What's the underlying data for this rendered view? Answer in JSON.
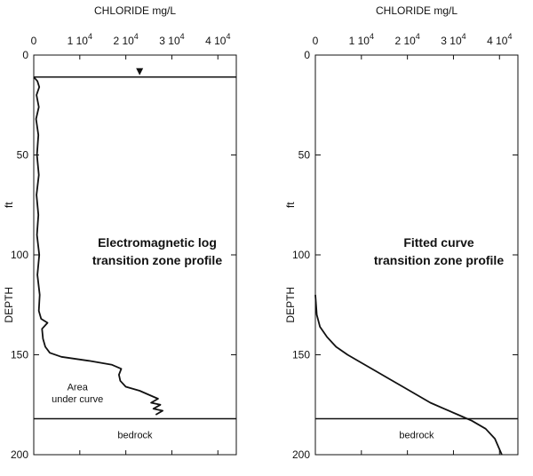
{
  "chart_data": [
    {
      "type": "line",
      "panel": "left",
      "xlabel": "CHLORIDE  mg/L",
      "ylabel": "DEPTH",
      "yunit": "ft",
      "xlim": [
        0,
        44000
      ],
      "ylim": [
        0,
        200
      ],
      "y_inverted": true,
      "x_ticks": [
        {
          "value": 0,
          "base": "0",
          "exp": ""
        },
        {
          "value": 10000,
          "base": "1 10",
          "exp": "4"
        },
        {
          "value": 20000,
          "base": "2 10",
          "exp": "4"
        },
        {
          "value": 30000,
          "base": "3 10",
          "exp": "4"
        },
        {
          "value": 40000,
          "base": "4 10",
          "exp": "4"
        }
      ],
      "y_ticks": [
        0,
        50,
        100,
        150,
        200
      ],
      "water_table_depth": 11,
      "water_table_marker_x": 23000,
      "bedrock_depth": 182,
      "annotations": {
        "title_line1": "Electromagnetic log",
        "title_line2": "transition zone profile",
        "area_line1": "Area",
        "area_line2": "under curve",
        "bedrock": "bedrock"
      },
      "series": [
        {
          "points": [
            [
              0,
              11
            ],
            [
              800,
              13
            ],
            [
              1200,
              16
            ],
            [
              600,
              20
            ],
            [
              1100,
              26
            ],
            [
              500,
              32
            ],
            [
              1000,
              40
            ],
            [
              700,
              50
            ],
            [
              1100,
              60
            ],
            [
              600,
              70
            ],
            [
              1000,
              80
            ],
            [
              700,
              90
            ],
            [
              1200,
              100
            ],
            [
              800,
              110
            ],
            [
              1300,
              120
            ],
            [
              1100,
              128
            ],
            [
              1600,
              132
            ],
            [
              3000,
              134
            ],
            [
              1800,
              137
            ],
            [
              2000,
              142
            ],
            [
              2500,
              146
            ],
            [
              3500,
              149
            ],
            [
              6000,
              151
            ],
            [
              12000,
              153
            ],
            [
              17000,
              155
            ],
            [
              19000,
              157
            ],
            [
              18500,
              160
            ],
            [
              18800,
              163
            ],
            [
              20000,
              166
            ],
            [
              23000,
              168
            ],
            [
              25000,
              170
            ],
            [
              27000,
              172
            ],
            [
              25500,
              174
            ],
            [
              27500,
              175
            ],
            [
              26000,
              177
            ],
            [
              28000,
              178
            ],
            [
              26500,
              180
            ]
          ]
        }
      ]
    },
    {
      "type": "line",
      "panel": "right",
      "xlabel": "CHLORIDE  mg/L",
      "ylabel": "DEPTH",
      "yunit": "ft",
      "xlim": [
        0,
        44000
      ],
      "ylim": [
        0,
        200
      ],
      "y_inverted": true,
      "x_ticks": [
        {
          "value": 0,
          "base": "0",
          "exp": ""
        },
        {
          "value": 10000,
          "base": "1 10",
          "exp": "4"
        },
        {
          "value": 20000,
          "base": "2 10",
          "exp": "4"
        },
        {
          "value": 30000,
          "base": "3 10",
          "exp": "4"
        },
        {
          "value": 40000,
          "base": "4 10",
          "exp": "4"
        }
      ],
      "y_ticks": [
        0,
        50,
        100,
        150,
        200
      ],
      "bedrock_depth": 182,
      "annotations": {
        "title_line1": "Fitted curve",
        "title_line2": "transition zone profile",
        "bedrock": "bedrock"
      },
      "series": [
        {
          "points": [
            [
              0,
              120
            ],
            [
              300,
              130
            ],
            [
              1000,
              136
            ],
            [
              2500,
              141
            ],
            [
              4500,
              146
            ],
            [
              7000,
              150
            ],
            [
              10000,
              154
            ],
            [
              13000,
              158
            ],
            [
              16000,
              162
            ],
            [
              19000,
              166
            ],
            [
              22000,
              170
            ],
            [
              25000,
              174
            ],
            [
              28000,
              177
            ],
            [
              31000,
              180
            ],
            [
              34000,
              183
            ],
            [
              37000,
              187
            ],
            [
              39000,
              192
            ],
            [
              40500,
              200
            ]
          ]
        }
      ]
    }
  ]
}
